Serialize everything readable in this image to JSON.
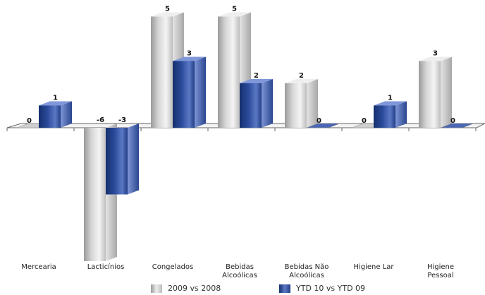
{
  "colors": {
    "series_2009": "#d8d8d8",
    "series_ytd": "#2a4a9a",
    "axis": "#666666"
  },
  "chart_data": {
    "type": "bar",
    "categories": [
      "Mercearia",
      "Lacticínios",
      "Congelados",
      "Bebidas Alcoólicas",
      "Bebidas Não Alcoólicas",
      "Higiene Lar",
      "Higiene Pessoal"
    ],
    "category_lines": [
      [
        "Mercearia"
      ],
      [
        "Lacticínios"
      ],
      [
        "Congelados"
      ],
      [
        "Bebidas",
        "Alcoólicas"
      ],
      [
        "Bebidas Não",
        "Alcoólicas"
      ],
      [
        "Higiene Lar"
      ],
      [
        "Higiene",
        "Pessoal"
      ]
    ],
    "series": [
      {
        "name": "2009 vs 2008",
        "values": [
          0,
          -6,
          5,
          5,
          2,
          0,
          3
        ]
      },
      {
        "name": "YTD 10 vs YTD 09",
        "values": [
          1,
          -3,
          3,
          2,
          0,
          1,
          0
        ]
      }
    ],
    "ylim": [
      -6,
      5
    ],
    "title": "",
    "xlabel": "",
    "ylabel": "",
    "legend": "bottom",
    "grid": false
  }
}
